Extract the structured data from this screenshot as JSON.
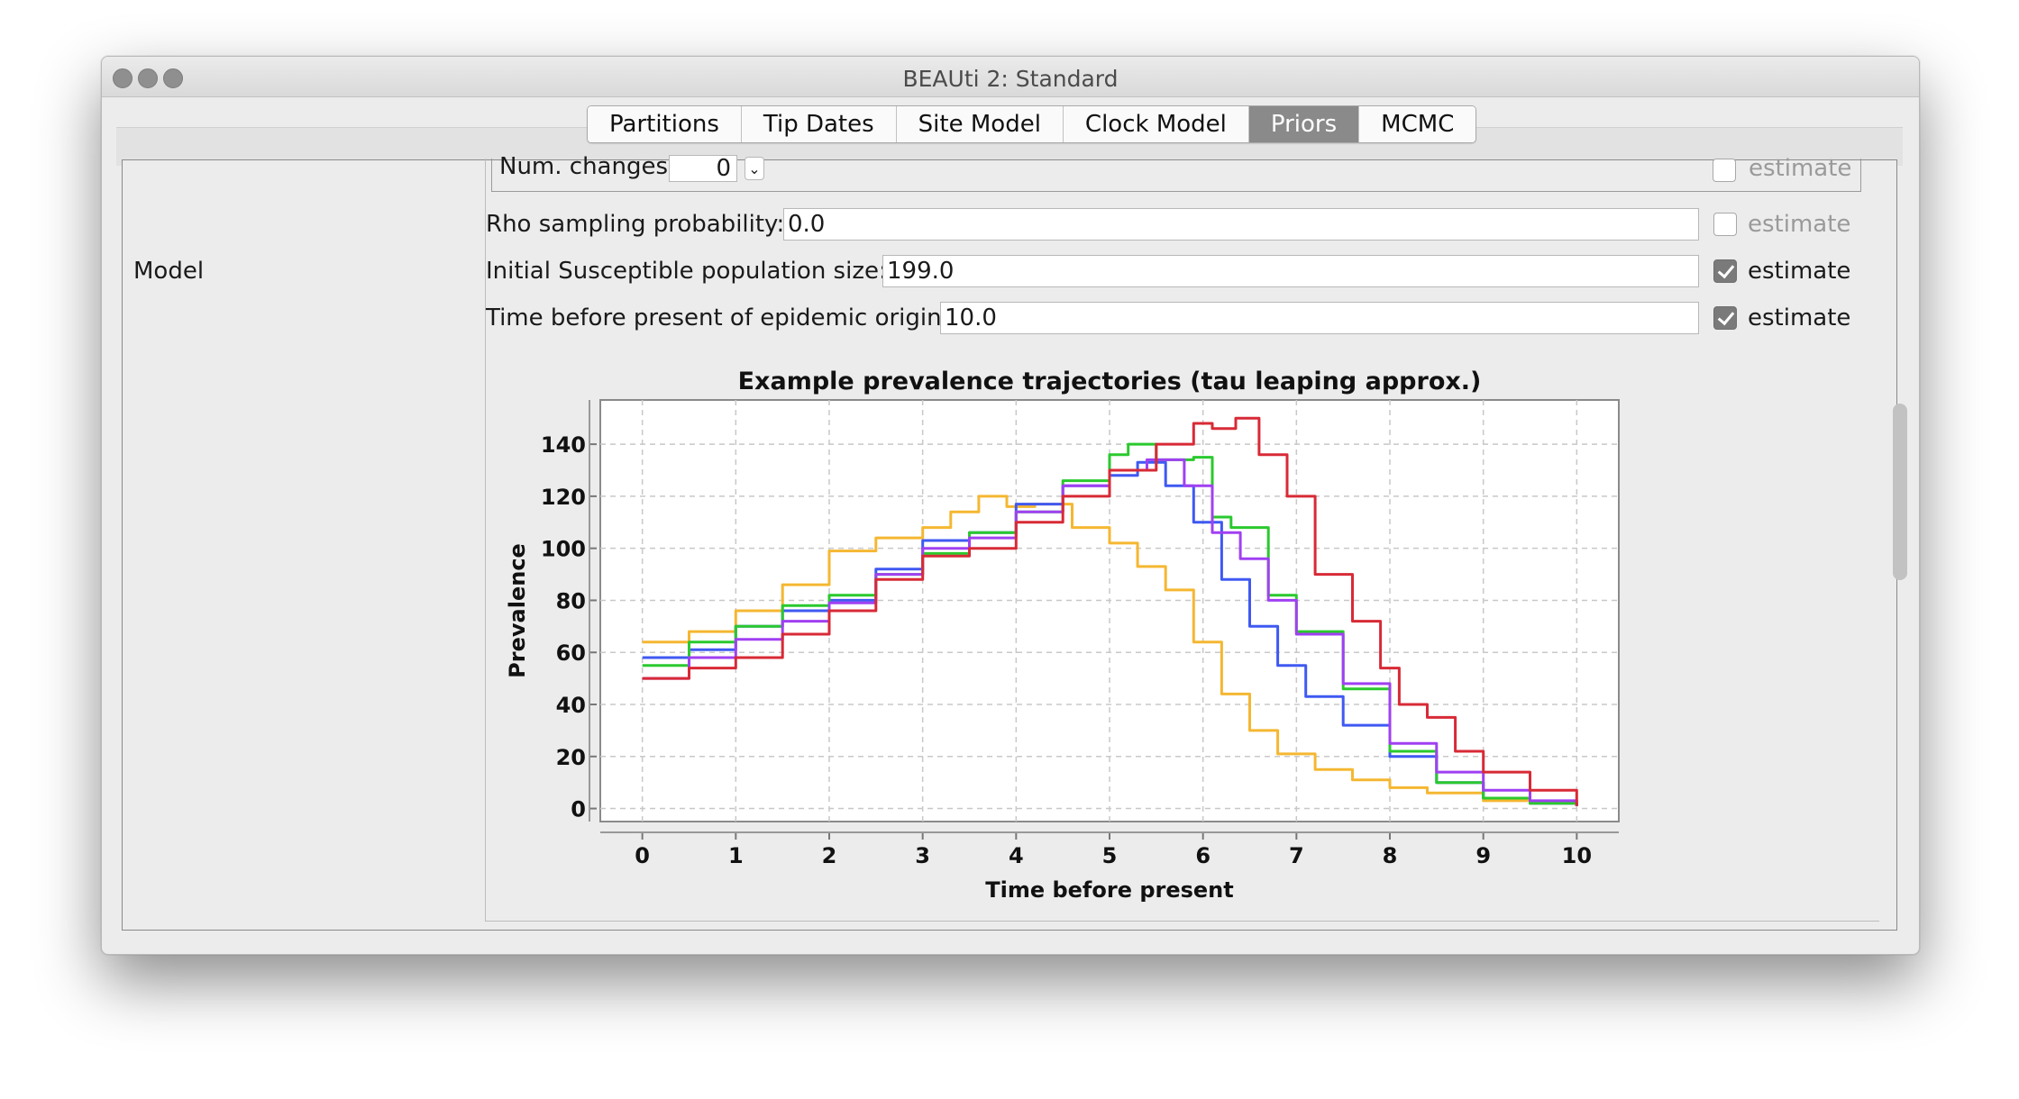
{
  "window": {
    "title": "BEAUti 2: Standard"
  },
  "tabs": [
    "Partitions",
    "Tip Dates",
    "Site Model",
    "Clock Model",
    "Priors",
    "MCMC"
  ],
  "selected_tab": "Priors",
  "sidebar": {
    "label": "Model"
  },
  "num_changes": {
    "label": "Num. changes:",
    "value": "0",
    "estimate_label": "estimate",
    "estimate_checked": false
  },
  "params": [
    {
      "label": "Rho sampling probability:",
      "value": "0.0",
      "estimate_label": "estimate",
      "estimate_checked": false
    },
    {
      "label": "Initial Susceptible population size:",
      "value": "199.0",
      "estimate_label": "estimate",
      "estimate_checked": true
    },
    {
      "label": "Time before present of epidemic origin:",
      "value": "10.0",
      "estimate_label": "estimate",
      "estimate_checked": true
    }
  ],
  "chart_data": {
    "type": "line",
    "title": "Example prevalence trajectories (tau leaping approx.)",
    "xlabel": "Time before present",
    "ylabel": "Prevalence",
    "xlim": [
      -0.45,
      10.45
    ],
    "ylim": [
      -5,
      157
    ],
    "xticks": [
      0,
      1,
      2,
      3,
      4,
      5,
      6,
      7,
      8,
      9,
      10
    ],
    "yticks": [
      0,
      20,
      40,
      60,
      80,
      100,
      120,
      140
    ],
    "grid": true,
    "series": [
      {
        "color": "#f5b731",
        "points": [
          [
            0,
            64
          ],
          [
            0.5,
            68
          ],
          [
            1,
            76
          ],
          [
            1.5,
            86
          ],
          [
            2,
            99
          ],
          [
            2.5,
            104
          ],
          [
            3,
            108
          ],
          [
            3.3,
            114
          ],
          [
            3.6,
            120
          ],
          [
            3.9,
            116
          ],
          [
            4.2,
            117
          ],
          [
            4.6,
            108
          ],
          [
            5,
            102
          ],
          [
            5.3,
            93
          ],
          [
            5.6,
            84
          ],
          [
            5.9,
            64
          ],
          [
            6.2,
            44
          ],
          [
            6.5,
            30
          ],
          [
            6.8,
            21
          ],
          [
            7.2,
            15
          ],
          [
            7.6,
            11
          ],
          [
            8,
            8
          ],
          [
            8.4,
            6
          ],
          [
            9,
            3
          ],
          [
            9.5,
            2
          ],
          [
            10,
            1
          ]
        ]
      },
      {
        "color": "#3f59f2",
        "points": [
          [
            0,
            58
          ],
          [
            0.5,
            61
          ],
          [
            1,
            70
          ],
          [
            1.5,
            76
          ],
          [
            2,
            80
          ],
          [
            2.5,
            92
          ],
          [
            3,
            103
          ],
          [
            3.5,
            106
          ],
          [
            4,
            117
          ],
          [
            4.5,
            124
          ],
          [
            5,
            128
          ],
          [
            5.3,
            133
          ],
          [
            5.6,
            124
          ],
          [
            5.9,
            110
          ],
          [
            6.2,
            88
          ],
          [
            6.5,
            70
          ],
          [
            6.8,
            55
          ],
          [
            7.1,
            43
          ],
          [
            7.5,
            32
          ],
          [
            8,
            20
          ],
          [
            8.5,
            10
          ],
          [
            9,
            4
          ],
          [
            9.5,
            2
          ],
          [
            10,
            1
          ]
        ]
      },
      {
        "color": "#2ac92e",
        "points": [
          [
            0,
            55
          ],
          [
            0.5,
            64
          ],
          [
            1,
            70
          ],
          [
            1.5,
            78
          ],
          [
            2,
            82
          ],
          [
            2.5,
            90
          ],
          [
            3,
            98
          ],
          [
            3.5,
            106
          ],
          [
            4,
            114
          ],
          [
            4.5,
            126
          ],
          [
            5,
            136
          ],
          [
            5.2,
            140
          ],
          [
            5.5,
            134
          ],
          [
            5.9,
            135
          ],
          [
            6.1,
            112
          ],
          [
            6.3,
            108
          ],
          [
            6.7,
            82
          ],
          [
            7,
            68
          ],
          [
            7.5,
            46
          ],
          [
            8,
            22
          ],
          [
            8.5,
            10
          ],
          [
            9,
            4
          ],
          [
            9.5,
            2
          ],
          [
            10,
            1
          ]
        ]
      },
      {
        "color": "#a040f2",
        "points": [
          [
            0,
            50
          ],
          [
            0.5,
            58
          ],
          [
            1,
            65
          ],
          [
            1.5,
            72
          ],
          [
            2,
            79
          ],
          [
            2.5,
            90
          ],
          [
            3,
            100
          ],
          [
            3.5,
            104
          ],
          [
            4,
            114
          ],
          [
            4.5,
            124
          ],
          [
            5,
            130
          ],
          [
            5.4,
            134
          ],
          [
            5.8,
            124
          ],
          [
            6.1,
            106
          ],
          [
            6.4,
            96
          ],
          [
            6.7,
            80
          ],
          [
            7,
            67
          ],
          [
            7.5,
            48
          ],
          [
            8,
            25
          ],
          [
            8.5,
            14
          ],
          [
            9,
            7
          ],
          [
            9.5,
            3
          ],
          [
            10,
            1
          ]
        ]
      },
      {
        "color": "#d82a36",
        "points": [
          [
            0,
            50
          ],
          [
            0.5,
            54
          ],
          [
            1,
            58
          ],
          [
            1.5,
            67
          ],
          [
            2,
            76
          ],
          [
            2.5,
            88
          ],
          [
            3,
            97
          ],
          [
            3.5,
            100
          ],
          [
            4,
            110
          ],
          [
            4.5,
            120
          ],
          [
            5,
            130
          ],
          [
            5.5,
            140
          ],
          [
            5.9,
            148
          ],
          [
            6.1,
            146
          ],
          [
            6.35,
            150
          ],
          [
            6.6,
            136
          ],
          [
            6.9,
            120
          ],
          [
            7.2,
            90
          ],
          [
            7.6,
            72
          ],
          [
            7.9,
            54
          ],
          [
            8.1,
            40
          ],
          [
            8.4,
            35
          ],
          [
            8.7,
            22
          ],
          [
            9,
            14
          ],
          [
            9.5,
            7
          ],
          [
            10,
            1
          ]
        ]
      }
    ]
  }
}
